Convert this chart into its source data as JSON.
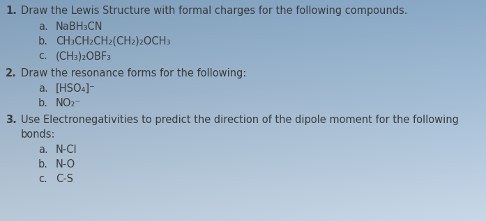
{
  "background_color_top": "#c8d8e8",
  "background_color_bottom": "#8aaac8",
  "fig_width": 6.97,
  "fig_height": 3.18,
  "dpi": 100,
  "text_color": "#3a3a3a",
  "fontsize": 10.5,
  "items": [
    {
      "xl": 8,
      "yt": 8,
      "text": "1.",
      "bold": true
    },
    {
      "xl": 30,
      "yt": 8,
      "text": "Draw the Lewis Structure with formal charges for the following compounds.",
      "bold": false
    },
    {
      "xl": 55,
      "yt": 31,
      "text": "a.",
      "bold": false
    },
    {
      "xl": 80,
      "yt": 31,
      "text": "NaBH₃CN",
      "bold": false
    },
    {
      "xl": 55,
      "yt": 52,
      "text": "b.",
      "bold": false
    },
    {
      "xl": 80,
      "yt": 52,
      "text": "CH₃CH₂CH₂(CH₂)₂OCH₃",
      "bold": false
    },
    {
      "xl": 55,
      "yt": 73,
      "text": "c.",
      "bold": false
    },
    {
      "xl": 80,
      "yt": 73,
      "text": "(CH₃)₂OBF₃",
      "bold": false
    },
    {
      "xl": 8,
      "yt": 98,
      "text": "2.",
      "bold": true
    },
    {
      "xl": 30,
      "yt": 98,
      "text": "Draw the resonance forms for the following:",
      "bold": false
    },
    {
      "xl": 55,
      "yt": 120,
      "text": "a.",
      "bold": false
    },
    {
      "xl": 80,
      "yt": 120,
      "text": "[HSO₄]⁻",
      "bold": false
    },
    {
      "xl": 55,
      "yt": 141,
      "text": "b.",
      "bold": false
    },
    {
      "xl": 80,
      "yt": 141,
      "text": "NO₂⁻",
      "bold": false
    },
    {
      "xl": 8,
      "yt": 165,
      "text": "3.",
      "bold": true
    },
    {
      "xl": 30,
      "yt": 165,
      "text": "Use Electronegativities to predict the direction of the dipole moment for the following",
      "bold": false
    },
    {
      "xl": 30,
      "yt": 186,
      "text": "bonds:",
      "bold": false
    },
    {
      "xl": 55,
      "yt": 208,
      "text": "a.",
      "bold": false
    },
    {
      "xl": 80,
      "yt": 208,
      "text": "N-Cl",
      "bold": false
    },
    {
      "xl": 55,
      "yt": 229,
      "text": "b.",
      "bold": false
    },
    {
      "xl": 80,
      "yt": 229,
      "text": "N-O",
      "bold": false
    },
    {
      "xl": 55,
      "yt": 250,
      "text": "c.",
      "bold": false
    },
    {
      "xl": 80,
      "yt": 250,
      "text": "C-S",
      "bold": false
    }
  ]
}
